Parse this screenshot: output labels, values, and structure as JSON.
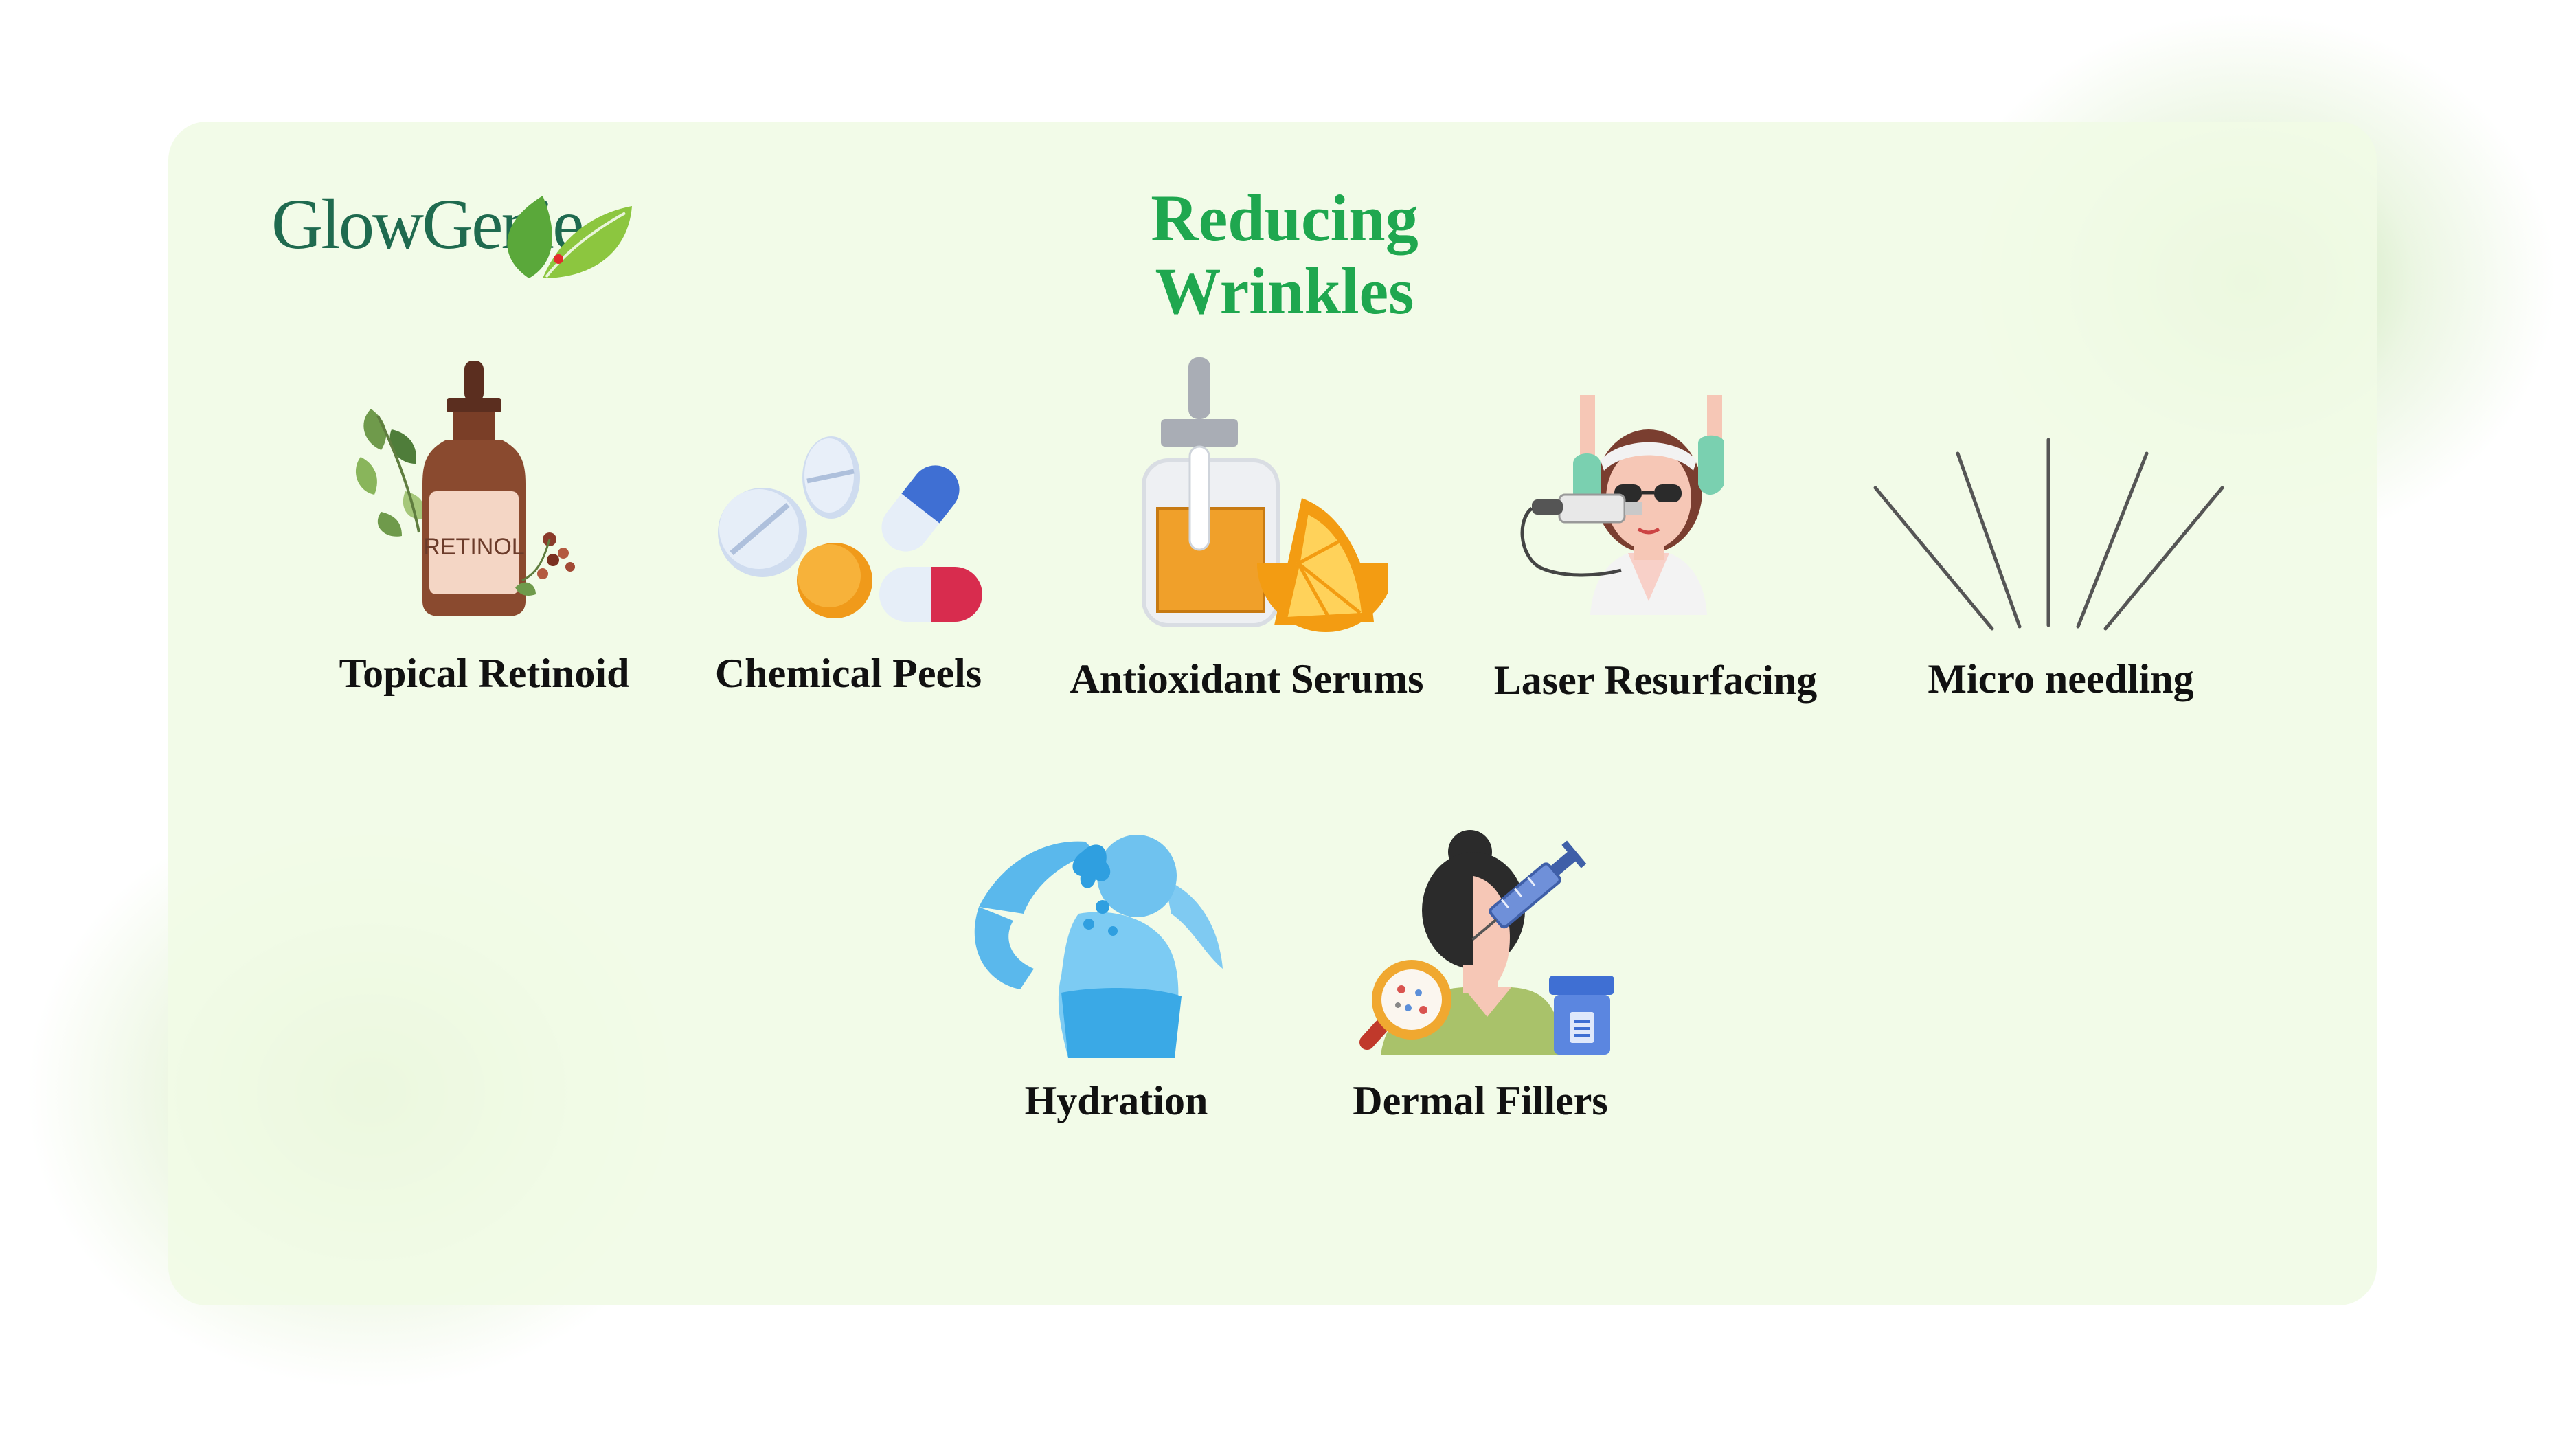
{
  "brand": {
    "logo_text": "GlowGenie"
  },
  "title": "Reducing Wrinkles",
  "colors": {
    "title": "#1fa74f",
    "card_background": "#f1fbe6",
    "logo": "#1f6a4f",
    "leaf": "#7cc242",
    "label": "#111111"
  },
  "items": [
    {
      "label": "Topical Retinoid",
      "icon": "retinol-bottle-icon",
      "icon_text": "RETINOL"
    },
    {
      "label": "Chemical Peels",
      "icon": "pills-icon"
    },
    {
      "label": "Antioxidant Serums",
      "icon": "serum-dropper-bottle-icon"
    },
    {
      "label": "Laser Resurfacing",
      "icon": "laser-treatment-icon"
    },
    {
      "label": "Micro needling",
      "icon": "needles-icon"
    },
    {
      "label": "Hydration",
      "icon": "drinking-water-icon"
    },
    {
      "label": "Dermal Fillers",
      "icon": "filler-injection-icon"
    }
  ]
}
